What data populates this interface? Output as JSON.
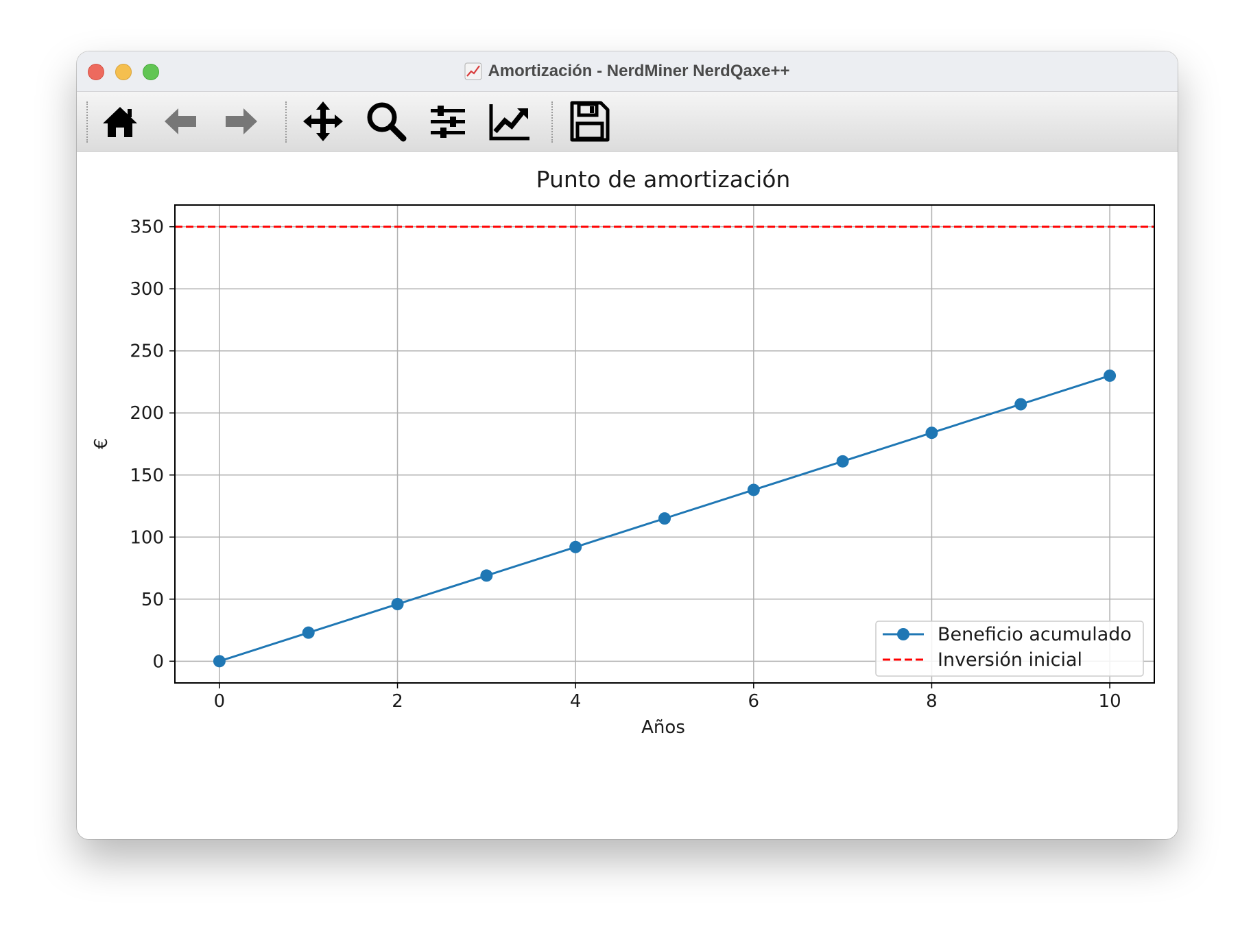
{
  "window": {
    "title": "Amortización - NerdMiner NerdQaxe++",
    "title_icon": "chart-increasing-icon"
  },
  "toolbar": {
    "buttons": [
      {
        "name": "home-button",
        "icon": "home-icon"
      },
      {
        "name": "back-button",
        "icon": "arrow-left-icon"
      },
      {
        "name": "forward-button",
        "icon": "arrow-right-icon"
      },
      {
        "name": "pan-button",
        "icon": "move-icon"
      },
      {
        "name": "zoom-button",
        "icon": "magnifier-icon"
      },
      {
        "name": "subplots-button",
        "icon": "sliders-icon"
      },
      {
        "name": "axes-button",
        "icon": "line-chart-icon"
      },
      {
        "name": "save-button",
        "icon": "floppy-disk-icon"
      }
    ]
  },
  "chart_data": {
    "type": "line",
    "title": "Punto de amortización",
    "xlabel": "Años",
    "ylabel": "€",
    "xlim": [
      -0.5,
      10.5
    ],
    "ylim": [
      -17.5,
      367.5
    ],
    "xticks": [
      0,
      2,
      4,
      6,
      8,
      10
    ],
    "yticks": [
      0,
      50,
      100,
      150,
      200,
      250,
      300,
      350
    ],
    "grid": true,
    "legend_position": "lower-right",
    "series": [
      {
        "name": "Beneficio acumulado",
        "color": "#1f77b4",
        "style": "solid-with-markers",
        "x": [
          0,
          1,
          2,
          3,
          4,
          5,
          6,
          7,
          8,
          9,
          10
        ],
        "y": [
          0,
          23,
          46,
          69,
          92,
          115,
          138,
          161,
          184,
          207,
          230
        ]
      },
      {
        "name": "Inversión inicial",
        "color": "#ff0000",
        "style": "dashed-horizontal",
        "y": 350
      }
    ]
  }
}
